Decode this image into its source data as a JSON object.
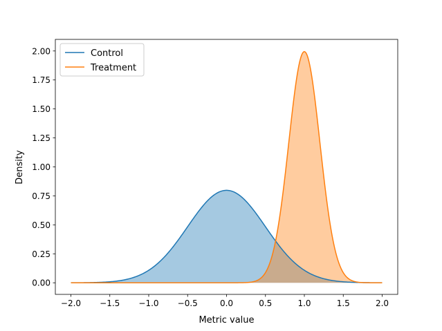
{
  "chart_data": {
    "type": "area",
    "title": "",
    "xlabel": "Metric value",
    "ylabel": "Density",
    "xlim": [
      -2.2,
      2.2
    ],
    "ylim": [
      -0.1,
      2.1
    ],
    "x_domain": [
      -2.0,
      2.0
    ],
    "x_ticks": [
      "-2.0",
      "-1.5",
      "-1.0",
      "-0.5",
      "0.0",
      "0.5",
      "1.0",
      "1.5",
      "2.0"
    ],
    "x_tick_values": [
      -2.0,
      -1.5,
      -1.0,
      -0.5,
      0.0,
      0.5,
      1.0,
      1.5,
      2.0
    ],
    "y_ticks": [
      "0.00",
      "0.25",
      "0.50",
      "0.75",
      "1.00",
      "1.25",
      "1.50",
      "1.75",
      "2.00"
    ],
    "y_tick_values": [
      0,
      0.25,
      0.5,
      0.75,
      1.0,
      1.25,
      1.5,
      1.75,
      2.0
    ],
    "grid": false,
    "legend_position": "top-left",
    "series": [
      {
        "name": "Control",
        "distribution": "normal",
        "mean": 0.0,
        "std": 0.5,
        "peak": 0.8,
        "color": "#1f77b4",
        "fill_alpha": 0.4
      },
      {
        "name": "Treatment",
        "distribution": "normal",
        "mean": 1.0,
        "std": 0.2,
        "peak": 1.99,
        "color": "#ff7f0e",
        "fill_alpha": 0.4
      }
    ]
  }
}
